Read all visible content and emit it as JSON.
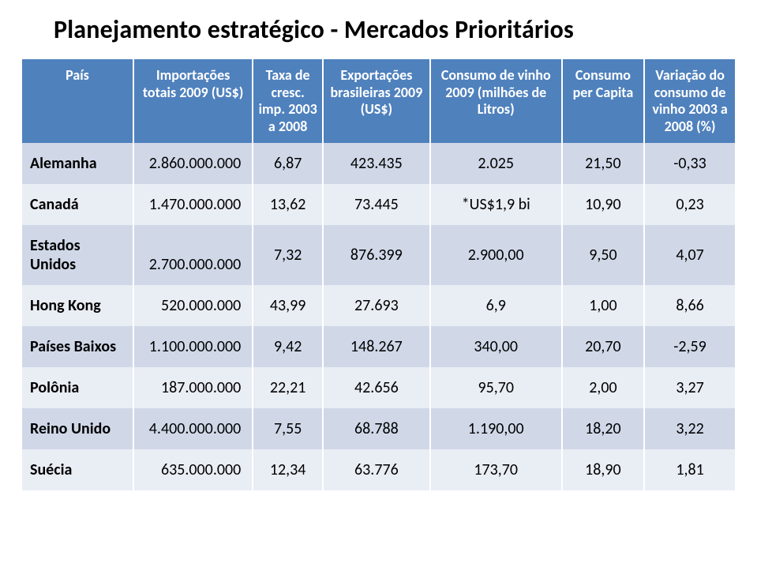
{
  "title": "Planejamento estratégico - Mercados Prioritários",
  "colors": {
    "header_bg": "#4f81bd",
    "header_text": "#ffffff",
    "row_odd": "#d0d8e8",
    "row_even": "#e9edf4",
    "text": "#000000"
  },
  "typography": {
    "title_fontsize": 32,
    "th_fontsize": 18,
    "td_fontsize": 20,
    "font_family": "Calibri"
  },
  "table": {
    "columns": [
      {
        "key": "pais",
        "label": "País",
        "width_pct": 13.5,
        "align": "left"
      },
      {
        "key": "imp",
        "label": "Importações totais 2009 (US$)",
        "width_pct": 14.5,
        "align": "right"
      },
      {
        "key": "taxa",
        "label": "Taxa de cresc. imp. 2003 a 2008",
        "width_pct": 8.5,
        "align": "center"
      },
      {
        "key": "exp",
        "label": "Exportações brasileiras 2009 (US$)",
        "width_pct": 13,
        "align": "center"
      },
      {
        "key": "consumo",
        "label": "Consumo de vinho 2009 (milhões de Litros)",
        "width_pct": 16,
        "align": "center"
      },
      {
        "key": "capita",
        "label": "Consumo per Capita",
        "width_pct": 10,
        "align": "center"
      },
      {
        "key": "var",
        "label": "Variação do consumo de vinho 2003 a 2008 (%)",
        "width_pct": 11,
        "align": "center"
      }
    ],
    "rows": [
      {
        "pais": "Alemanha",
        "imp": "2.860.000.000",
        "taxa": "6,87",
        "exp": "423.435",
        "consumo": "2.025",
        "capita": "21,50",
        "var": "-0,33"
      },
      {
        "pais": "Canadá",
        "imp": "1.470.000.000",
        "taxa": "13,62",
        "exp": "73.445",
        "consumo": "*US$1,9 bi",
        "capita": "10,90",
        "var": "0,23"
      },
      {
        "pais": "Estados Unidos",
        "imp": "2.700.000.000",
        "taxa": "7,32",
        "exp": "876.399",
        "consumo": "2.900,00",
        "capita": "9,50",
        "var": "4,07"
      },
      {
        "pais": "Hong Kong",
        "imp": "520.000.000",
        "taxa": "43,99",
        "exp": "27.693",
        "consumo": "6,9",
        "capita": "1,00",
        "var": "8,66"
      },
      {
        "pais": "Países Baixos",
        "imp": "1.100.000.000",
        "taxa": "9,42",
        "exp": "148.267",
        "consumo": "340,00",
        "capita": "20,70",
        "var": "-2,59"
      },
      {
        "pais": "Polônia",
        "imp": "187.000.000",
        "taxa": "22,21",
        "exp": "42.656",
        "consumo": "95,70",
        "capita": "2,00",
        "var": "3,27"
      },
      {
        "pais": "Reino Unido",
        "imp": "4.400.000.000",
        "taxa": "7,55",
        "exp": "68.788",
        "consumo": "1.190,00",
        "capita": "18,20",
        "var": "3,22"
      },
      {
        "pais": "Suécia",
        "imp": "635.000.000",
        "taxa": "12,34",
        "exp": "63.776",
        "consumo": "173,70",
        "capita": "18,90",
        "var": "1,81"
      }
    ]
  }
}
